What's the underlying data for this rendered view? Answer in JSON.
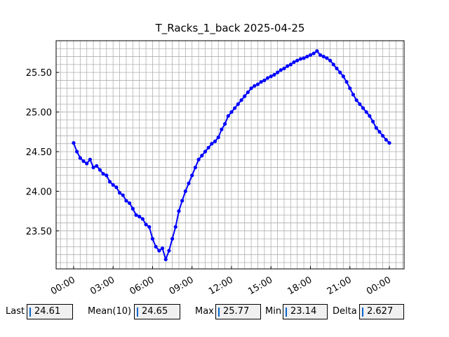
{
  "chart_data": {
    "type": "line",
    "title": "T_Racks_1_back 2025-04-25",
    "x": [
      0,
      0.25,
      0.5,
      0.75,
      1,
      1.25,
      1.5,
      1.75,
      2,
      2.25,
      2.5,
      2.75,
      3,
      3.25,
      3.5,
      3.75,
      4,
      4.25,
      4.5,
      4.75,
      5,
      5.25,
      5.5,
      5.75,
      6,
      6.25,
      6.5,
      6.75,
      7,
      7.25,
      7.5,
      7.75,
      8,
      8.25,
      8.5,
      8.75,
      9,
      9.25,
      9.5,
      9.75,
      10,
      10.25,
      10.5,
      10.75,
      11,
      11.25,
      11.5,
      11.75,
      12,
      12.25,
      12.5,
      12.75,
      13,
      13.25,
      13.5,
      13.75,
      14,
      14.25,
      14.5,
      14.75,
      15,
      15.25,
      15.5,
      15.75,
      16,
      16.25,
      16.5,
      16.75,
      17,
      17.25,
      17.5,
      17.75,
      18,
      18.25,
      18.5,
      18.75,
      19,
      19.25,
      19.5,
      19.75,
      20,
      20.25,
      20.5,
      20.75,
      21,
      21.25,
      21.5,
      21.75,
      22,
      22.25,
      22.5,
      22.75,
      23,
      23.25,
      23.5,
      23.75,
      24
    ],
    "values": [
      24.61,
      24.5,
      24.42,
      24.38,
      24.35,
      24.4,
      24.3,
      24.32,
      24.27,
      24.22,
      24.2,
      24.12,
      24.08,
      24.05,
      23.98,
      23.95,
      23.88,
      23.85,
      23.78,
      23.7,
      23.68,
      23.65,
      23.58,
      23.55,
      23.4,
      23.3,
      23.25,
      23.28,
      23.14,
      23.25,
      23.4,
      23.55,
      23.75,
      23.88,
      24.0,
      24.1,
      24.2,
      24.3,
      24.4,
      24.45,
      24.5,
      24.55,
      24.6,
      24.63,
      24.68,
      24.78,
      24.85,
      24.95,
      25.0,
      25.05,
      25.1,
      25.15,
      25.2,
      25.25,
      25.3,
      25.33,
      25.35,
      25.38,
      25.4,
      25.43,
      25.45,
      25.47,
      25.5,
      25.53,
      25.55,
      25.58,
      25.6,
      25.63,
      25.65,
      25.67,
      25.68,
      25.7,
      25.72,
      25.74,
      25.77,
      25.72,
      25.7,
      25.68,
      25.65,
      25.6,
      25.55,
      25.5,
      25.45,
      25.38,
      25.3,
      25.22,
      25.15,
      25.1,
      25.05,
      25.0,
      24.95,
      24.88,
      24.8,
      24.75,
      24.7,
      24.65,
      24.61
    ],
    "color": "#0000ff",
    "xlim": [
      -1.33,
      25.12
    ],
    "xticks": [
      {
        "value": 0,
        "label": "00:00"
      },
      {
        "value": 3,
        "label": "03:00"
      },
      {
        "value": 6,
        "label": "06:00"
      },
      {
        "value": 9,
        "label": "09:00"
      },
      {
        "value": 12,
        "label": "12:00"
      },
      {
        "value": 15,
        "label": "15:00"
      },
      {
        "value": 18,
        "label": "18:00"
      },
      {
        "value": 21,
        "label": "21:00"
      },
      {
        "value": 24,
        "label": "00:00"
      }
    ],
    "ylim": [
      23.02,
      25.9
    ],
    "yticks": [
      {
        "value": 23.5,
        "label": "23.50"
      },
      {
        "value": 24,
        "label": "24.00"
      },
      {
        "value": 24.5,
        "label": "24.50"
      },
      {
        "value": 25,
        "label": "25.00"
      },
      {
        "value": 25.5,
        "label": "25.50"
      }
    ],
    "grid": true,
    "x_minor_step": 0.5,
    "y_minor_step": 0.1
  },
  "stats": [
    {
      "label": "Last",
      "value": 24.61
    },
    {
      "label": "Mean(10)",
      "value": 24.65
    },
    {
      "label": "Max",
      "value": 25.77
    },
    {
      "label": "Min",
      "value": 23.14
    },
    {
      "label": "Delta",
      "value": 2.627
    }
  ]
}
